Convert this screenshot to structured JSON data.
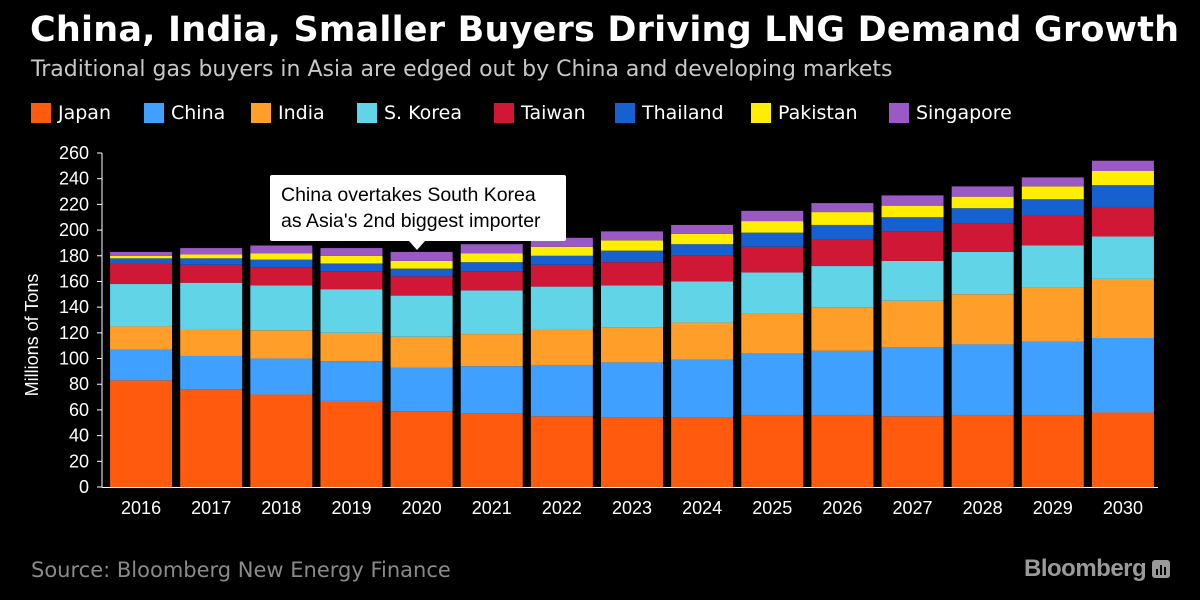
{
  "header": {
    "title": "China, India, Smaller Buyers Driving LNG Demand Growth",
    "subtitle": "Traditional gas buyers in Asia are edged out by China and developing markets"
  },
  "annotation": {
    "line1": "China overtakes South Korea",
    "line2": "as Asia's 2nd biggest importer",
    "category": "2020"
  },
  "footer": {
    "source": "Source: Bloomberg New Energy Finance",
    "brand": "Bloomberg",
    "brand_icon": "bloomberg-chart-icon"
  },
  "chart_data": {
    "type": "bar",
    "stacked": true,
    "title": "China, India, Smaller Buyers Driving LNG Demand Growth",
    "subtitle": "Traditional gas buyers in Asia are edged out by China and developing markets",
    "xlabel": "",
    "ylabel": "Millions of Tons",
    "ylim": [
      0,
      260
    ],
    "yticks": [
      0,
      20,
      40,
      60,
      80,
      100,
      120,
      140,
      160,
      180,
      200,
      220,
      240,
      260
    ],
    "grid": false,
    "legend_position": "top",
    "categories": [
      "2016",
      "2017",
      "2018",
      "2019",
      "2020",
      "2021",
      "2022",
      "2023",
      "2024",
      "2025",
      "2026",
      "2027",
      "2028",
      "2029",
      "2030"
    ],
    "series": [
      {
        "name": "Japan",
        "color": "#ff5a0e",
        "values": [
          83,
          76,
          72,
          67,
          59,
          57,
          55,
          54,
          54,
          56,
          56,
          55,
          56,
          56,
          58
        ]
      },
      {
        "name": "China",
        "color": "#40a0ff",
        "values": [
          24,
          26,
          28,
          31,
          34,
          37,
          40,
          43,
          45,
          48,
          50,
          54,
          55,
          57,
          58
        ]
      },
      {
        "name": "India",
        "color": "#ff9f2a",
        "values": [
          18,
          21,
          22,
          22,
          24,
          25,
          28,
          27,
          29,
          31,
          34,
          36,
          39,
          42,
          46
        ]
      },
      {
        "name": "S. Korea",
        "color": "#62d4e8",
        "values": [
          33,
          36,
          35,
          34,
          32,
          34,
          33,
          33,
          32,
          32,
          32,
          31,
          33,
          33,
          33
        ]
      },
      {
        "name": "Taiwan",
        "color": "#d01836",
        "values": [
          16,
          14,
          14,
          14,
          15,
          15,
          17,
          18,
          20,
          20,
          21,
          23,
          22,
          23,
          23
        ]
      },
      {
        "name": "Thailand",
        "color": "#1660d0",
        "values": [
          4,
          5,
          6,
          6,
          6,
          7,
          7,
          9,
          9,
          11,
          11,
          11,
          12,
          13,
          17
        ]
      },
      {
        "name": "Pakistan",
        "color": "#ffee00",
        "values": [
          2,
          3,
          5,
          6,
          6,
          7,
          7,
          8,
          8,
          9,
          10,
          9,
          9,
          10,
          11
        ]
      },
      {
        "name": "Singapore",
        "color": "#9a59c4",
        "values": [
          3,
          5,
          6,
          6,
          7,
          7,
          7,
          7,
          7,
          8,
          7,
          8,
          8,
          7,
          8
        ]
      }
    ]
  }
}
